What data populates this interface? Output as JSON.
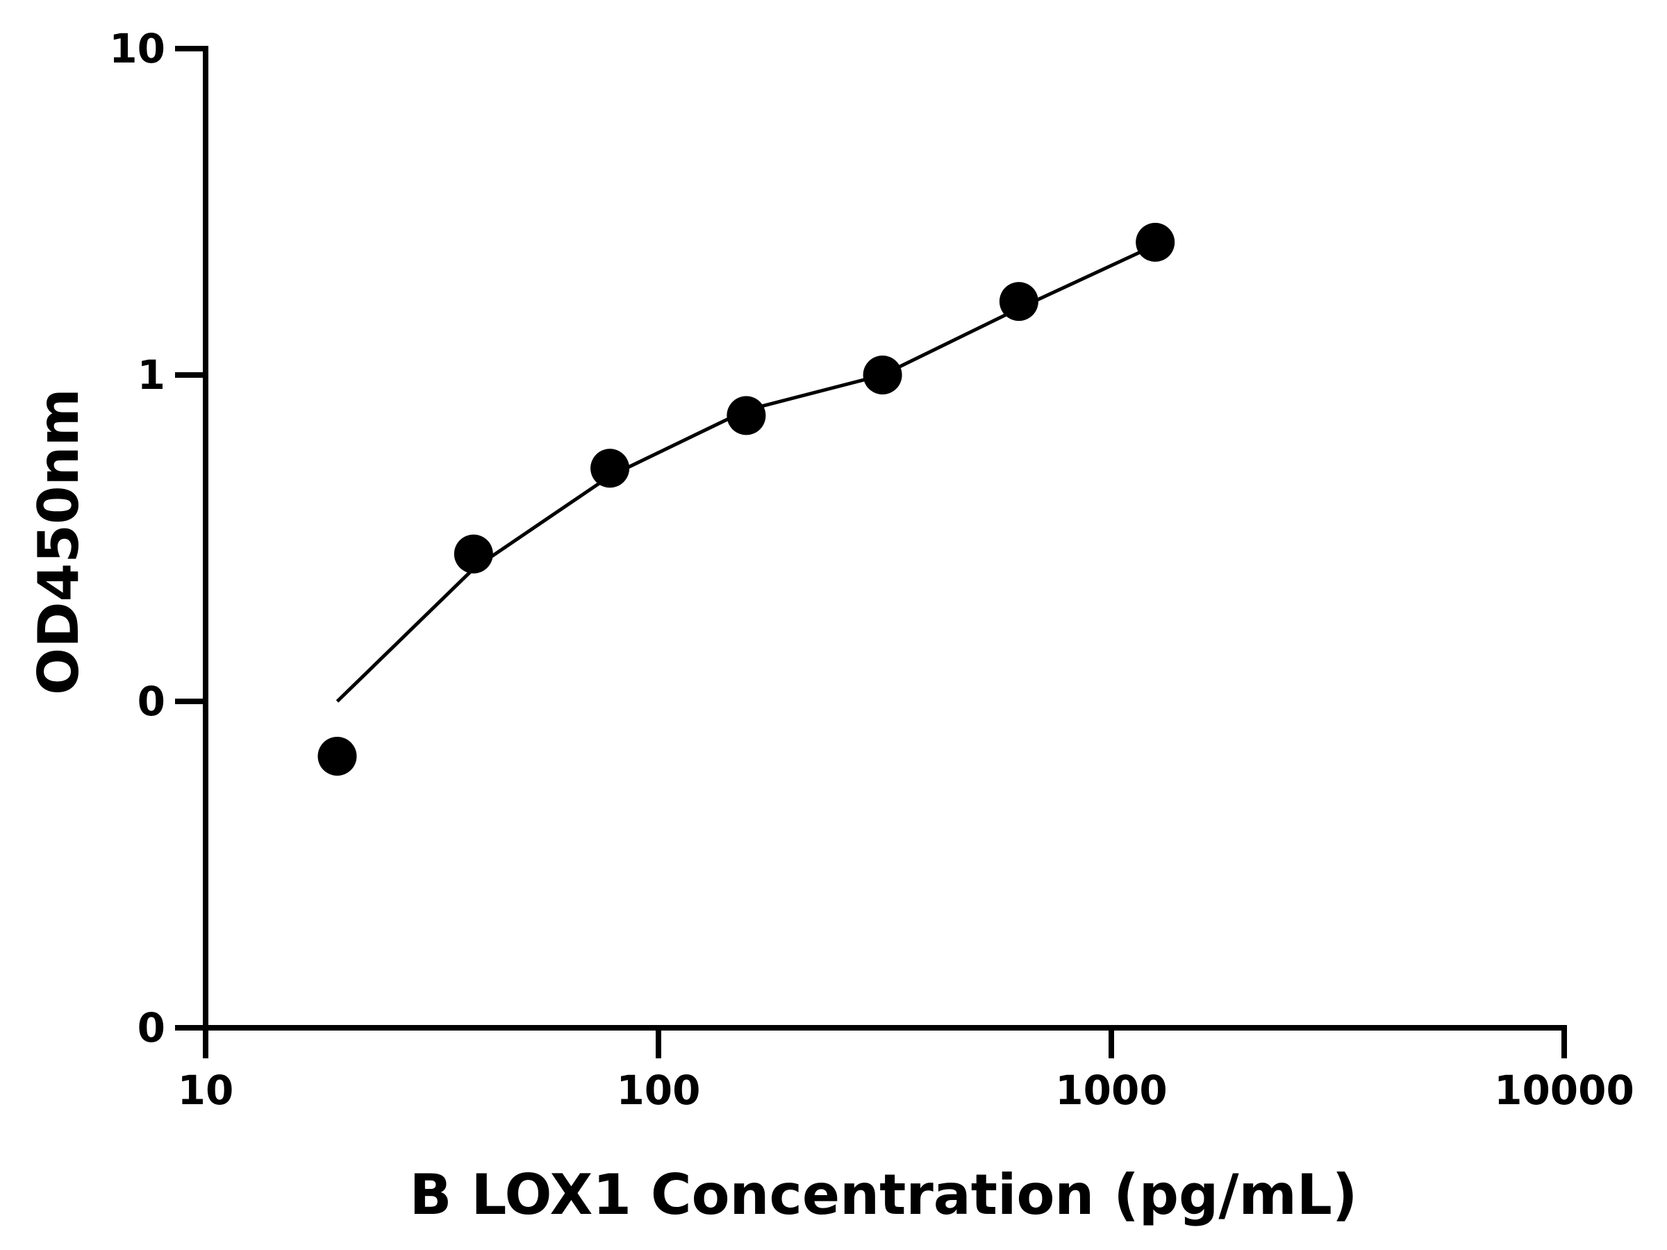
{
  "chart_data": {
    "type": "scatter",
    "title": "",
    "xlabel": "B LOX1 Concentration (pg/mL)",
    "ylabel": "OD450nm",
    "x_scale": "log",
    "xlim": [
      10,
      10000
    ],
    "x_ticks": [
      {
        "value": 10,
        "label": "10"
      },
      {
        "value": 100,
        "label": "100"
      },
      {
        "value": 1000,
        "label": "1000"
      },
      {
        "value": 10000,
        "label": "10000"
      }
    ],
    "y_scale": "log",
    "ylim": [
      0.05,
      10
    ],
    "y_ticks": [
      {
        "value": 0.05,
        "label": "0"
      },
      {
        "value": 0.1,
        "label": "0"
      },
      {
        "value": 1,
        "label": "1"
      },
      {
        "value": 10,
        "label": "10"
      }
    ],
    "grid": false,
    "legend": "none",
    "series": [
      {
        "x": [
          19.53,
          39.06,
          78.13,
          156.25,
          312.5,
          625,
          1250
        ],
        "y": [
          0.089,
          0.283,
          0.518,
          0.751,
          1.0,
          1.68,
          2.55
        ]
      }
    ],
    "fit_curve": {
      "x": [
        19.53,
        39.06,
        78.13,
        156.25,
        312.5,
        625,
        1250
      ],
      "y": [
        0.1,
        0.255,
        0.49,
        0.78,
        1.0,
        1.6,
        2.5
      ]
    },
    "colors": {
      "marker": "#000000",
      "line": "#000000",
      "axis": "#000000"
    }
  }
}
